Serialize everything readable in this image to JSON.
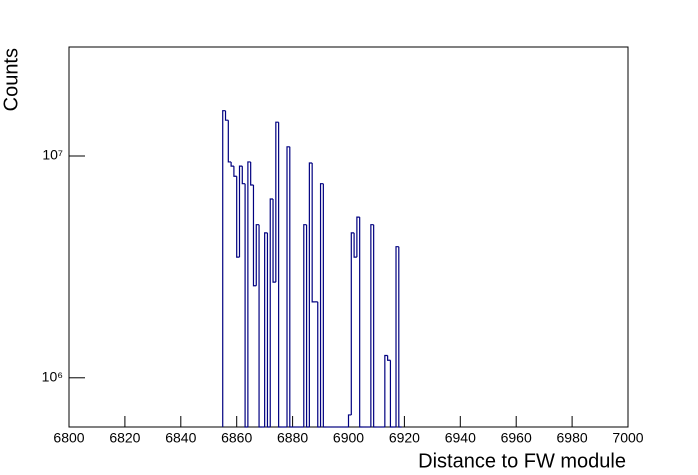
{
  "chart_data": {
    "type": "histogram",
    "x_label": "Distance to FW module",
    "y_label": "Counts",
    "log_y": true,
    "color": "#000080",
    "xlim": [
      6800,
      7000
    ],
    "xticks": [
      6800,
      6820,
      6840,
      6860,
      6880,
      6900,
      6920,
      6940,
      6960,
      6980,
      7000
    ],
    "ylim": [
      600000,
      31000000
    ],
    "yticks": [
      {
        "value": 1000000,
        "label": "10⁶"
      },
      {
        "value": 10000000,
        "label": "10⁷"
      }
    ],
    "bins": [
      6855,
      6856,
      6857,
      6858,
      6859,
      6860,
      6861,
      6862,
      6863,
      6864,
      6865,
      6866,
      6867,
      6868,
      6869,
      6870,
      6871,
      6872,
      6873,
      6874,
      6875,
      6876,
      6877,
      6878,
      6879,
      6880,
      6881,
      6882,
      6883,
      6884,
      6885,
      6886,
      6887,
      6888,
      6889,
      6890,
      6891,
      6892,
      6893,
      6894,
      6895,
      6896,
      6897,
      6898,
      6899,
      6900,
      6901,
      6902,
      6903,
      6904,
      6905,
      6906,
      6907,
      6908,
      6909,
      6910,
      6911,
      6912,
      6913,
      6914,
      6915,
      6916,
      6917,
      6918,
      6919
    ],
    "values": [
      16000000,
      14500000,
      9400000,
      9000000,
      8100000,
      3500000,
      9000000,
      7500000,
      0,
      9400000,
      7400000,
      2600000,
      4900000,
      0,
      0,
      4500000,
      0,
      6400000,
      2700000,
      14200000,
      0,
      0,
      0,
      11000000,
      0,
      0,
      0,
      0,
      0,
      4900000,
      0,
      9300000,
      2200000,
      2200000,
      0,
      7500000,
      0,
      0,
      0,
      0,
      0,
      0,
      0,
      0,
      0,
      680000,
      4500000,
      3500000,
      5300000,
      0,
      0,
      0,
      0,
      4900000,
      0,
      0,
      0,
      0,
      1260000,
      1200000,
      0,
      0,
      3900000,
      0
    ]
  }
}
